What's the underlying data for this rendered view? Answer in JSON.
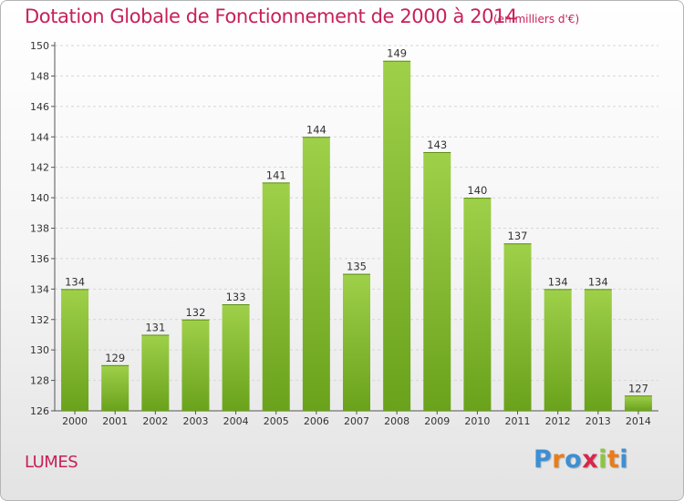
{
  "header": {
    "title": "Dotation Globale de Fonctionnement de 2000 à 2014",
    "subtitle": "(en milliers d'€)"
  },
  "commune": "LUMES",
  "logo": {
    "text": "Proxiti",
    "letter_colors": [
      "#3c8fd4",
      "#e87d1c",
      "#3c8fd4",
      "#d8264a",
      "#8cc63e",
      "#e87d1c",
      "#3c8fd4"
    ]
  },
  "chart_data": {
    "type": "bar",
    "categories": [
      "2000",
      "2001",
      "2002",
      "2003",
      "2004",
      "2005",
      "2006",
      "2007",
      "2008",
      "2009",
      "2010",
      "2011",
      "2012",
      "2013",
      "2014"
    ],
    "values": [
      134,
      129,
      131,
      132,
      133,
      141,
      144,
      135,
      149,
      143,
      140,
      137,
      134,
      134,
      127
    ],
    "ylim": [
      126,
      150
    ],
    "yticks": [
      126,
      128,
      130,
      132,
      134,
      136,
      138,
      140,
      142,
      144,
      146,
      148,
      150
    ],
    "grid": true,
    "bar_color_top": "#9fd04a",
    "bar_color_bottom": "#6aa21c"
  }
}
